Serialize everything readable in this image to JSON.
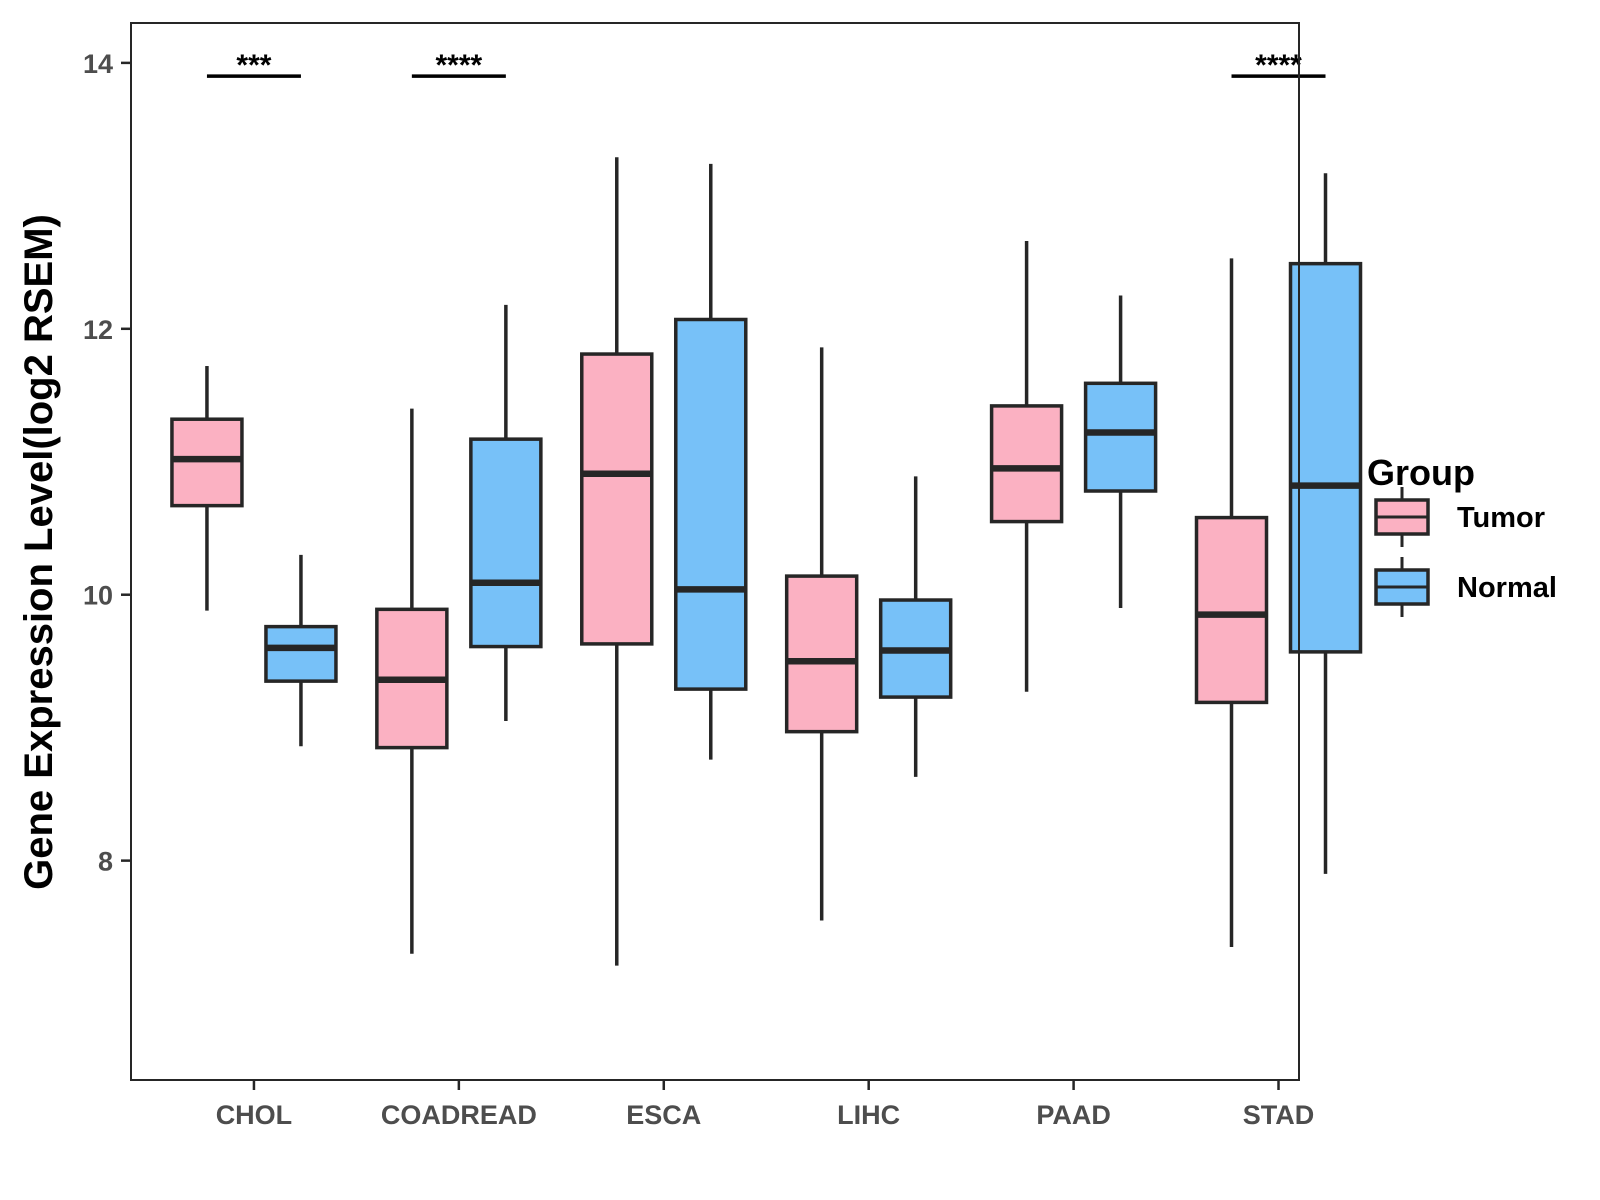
{
  "chart_data": {
    "type": "boxplot",
    "title": "",
    "xlabel": "",
    "ylabel": "Gene Expression Level(log2 RSEM)",
    "ylim": [
      6.35,
      14.3
    ],
    "yticks": [
      8,
      10,
      12,
      14
    ],
    "categories": [
      "CHOL",
      "COADREAD",
      "ESCA",
      "LIHC",
      "PAAD",
      "STAD"
    ],
    "legend": {
      "title": "Group",
      "position": "right",
      "entries": [
        "Tumor",
        "Normal"
      ]
    },
    "colors": {
      "Tumor": "#fbb1c2",
      "Normal": "#77c1f8",
      "outline": "#262626",
      "axis": "#262626"
    },
    "series": [
      {
        "name": "Tumor",
        "boxes": [
          {
            "min": 9.88,
            "q1": 10.67,
            "median": 11.02,
            "q3": 11.32,
            "max": 11.72
          },
          {
            "min": 7.3,
            "q1": 8.85,
            "median": 9.36,
            "q3": 9.89,
            "max": 11.4
          },
          {
            "min": 7.21,
            "q1": 9.63,
            "median": 10.91,
            "q3": 11.81,
            "max": 13.29
          },
          {
            "min": 7.55,
            "q1": 8.97,
            "median": 9.5,
            "q3": 10.14,
            "max": 11.86
          },
          {
            "min": 9.27,
            "q1": 10.55,
            "median": 10.95,
            "q3": 11.42,
            "max": 12.66
          },
          {
            "min": 7.35,
            "q1": 9.19,
            "median": 9.85,
            "q3": 10.58,
            "max": 12.53
          }
        ]
      },
      {
        "name": "Normal",
        "boxes": [
          {
            "min": 8.86,
            "q1": 9.35,
            "median": 9.6,
            "q3": 9.76,
            "max": 10.3
          },
          {
            "min": 9.05,
            "q1": 9.61,
            "median": 10.09,
            "q3": 11.17,
            "max": 12.18
          },
          {
            "min": 8.76,
            "q1": 9.29,
            "median": 10.04,
            "q3": 12.07,
            "max": 13.24
          },
          {
            "min": 8.63,
            "q1": 9.23,
            "median": 9.58,
            "q3": 9.96,
            "max": 10.89
          },
          {
            "min": 9.9,
            "q1": 10.78,
            "median": 11.22,
            "q3": 11.59,
            "max": 12.25
          },
          {
            "min": 7.9,
            "q1": 9.57,
            "median": 10.82,
            "q3": 12.49,
            "max": 13.17
          }
        ]
      }
    ],
    "significance": [
      {
        "category": "CHOL",
        "label": "***",
        "y": 13.9
      },
      {
        "category": "COADREAD",
        "label": "****",
        "y": 13.9
      },
      {
        "category": "STAD",
        "label": "****",
        "y": 13.9
      }
    ]
  }
}
